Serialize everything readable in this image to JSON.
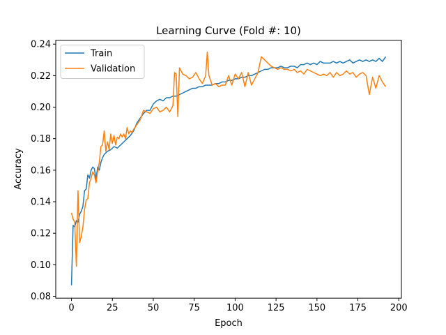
{
  "chart_data": {
    "type": "line",
    "title": "Learning Curve (Fold #: 10)",
    "xlabel": "Epoch",
    "ylabel": "Accuracy",
    "xlim": [
      -9.6,
      201.6
    ],
    "ylim": [
      0.0788,
      0.2425
    ],
    "xticks": [
      0,
      25,
      50,
      75,
      100,
      125,
      150,
      175,
      200
    ],
    "yticks": [
      0.08,
      0.1,
      0.12,
      0.14,
      0.16,
      0.18,
      0.2,
      0.22,
      0.24
    ],
    "ytick_labels": [
      "0.08",
      "0.10",
      "0.12",
      "0.14",
      "0.16",
      "0.18",
      "0.20",
      "0.22",
      "0.24"
    ],
    "legend_position": "top-left",
    "grid": false,
    "series": [
      {
        "name": "Train",
        "color": "#1f77b4",
        "x": [
          0,
          1,
          2,
          3,
          4,
          5,
          6,
          7,
          8,
          9,
          10,
          11,
          12,
          13,
          14,
          15,
          16,
          17,
          18,
          19,
          20,
          22,
          24,
          26,
          28,
          30,
          32,
          34,
          36,
          38,
          40,
          42,
          44,
          46,
          48,
          50,
          52,
          54,
          56,
          58,
          60,
          62,
          64,
          66,
          68,
          70,
          72,
          74,
          76,
          78,
          80,
          82,
          84,
          86,
          88,
          90,
          92,
          94,
          96,
          98,
          100,
          102,
          104,
          106,
          108,
          110,
          112,
          114,
          116,
          118,
          120,
          122,
          124,
          126,
          128,
          130,
          132,
          134,
          136,
          138,
          140,
          142,
          144,
          146,
          148,
          150,
          152,
          154,
          156,
          158,
          160,
          162,
          164,
          166,
          168,
          170,
          172,
          174,
          176,
          178,
          180,
          182,
          184,
          186,
          188,
          190,
          192
        ],
        "y": [
          0.087,
          0.125,
          0.124,
          0.128,
          0.127,
          0.132,
          0.134,
          0.137,
          0.147,
          0.148,
          0.157,
          0.155,
          0.16,
          0.162,
          0.161,
          0.154,
          0.162,
          0.16,
          0.165,
          0.168,
          0.17,
          0.172,
          0.173,
          0.175,
          0.174,
          0.176,
          0.178,
          0.18,
          0.182,
          0.185,
          0.19,
          0.193,
          0.196,
          0.198,
          0.198,
          0.202,
          0.204,
          0.205,
          0.204,
          0.206,
          0.206,
          0.207,
          0.207,
          0.208,
          0.209,
          0.21,
          0.211,
          0.212,
          0.212,
          0.213,
          0.213,
          0.214,
          0.214,
          0.214,
          0.215,
          0.215,
          0.216,
          0.216,
          0.217,
          0.217,
          0.218,
          0.218,
          0.219,
          0.219,
          0.22,
          0.22,
          0.221,
          0.222,
          0.223,
          0.224,
          0.224,
          0.225,
          0.225,
          0.225,
          0.226,
          0.225,
          0.225,
          0.226,
          0.226,
          0.225,
          0.227,
          0.227,
          0.228,
          0.227,
          0.228,
          0.227,
          0.229,
          0.228,
          0.228,
          0.228,
          0.229,
          0.228,
          0.229,
          0.228,
          0.229,
          0.23,
          0.228,
          0.229,
          0.23,
          0.229,
          0.23,
          0.229,
          0.23,
          0.229,
          0.231,
          0.229,
          0.232
        ]
      },
      {
        "name": "Validation",
        "color": "#ff7f0e",
        "x": [
          0,
          1,
          2,
          3,
          4,
          5,
          6,
          7,
          8,
          9,
          10,
          11,
          12,
          13,
          14,
          15,
          16,
          17,
          18,
          19,
          20,
          21,
          22,
          23,
          24,
          25,
          26,
          27,
          28,
          29,
          30,
          31,
          32,
          33,
          34,
          35,
          36,
          37,
          38,
          40,
          42,
          44,
          46,
          48,
          50,
          52,
          54,
          56,
          58,
          60,
          62,
          63,
          64,
          65,
          66,
          67,
          68,
          70,
          72,
          74,
          76,
          78,
          80,
          82,
          83,
          84,
          86,
          88,
          90,
          92,
          94,
          96,
          98,
          100,
          102,
          104,
          106,
          108,
          110,
          112,
          114,
          116,
          118,
          120,
          122,
          124,
          126,
          128,
          130,
          132,
          134,
          136,
          138,
          140,
          142,
          144,
          146,
          148,
          150,
          152,
          154,
          156,
          158,
          160,
          162,
          164,
          166,
          168,
          170,
          172,
          174,
          176,
          178,
          180,
          182,
          184,
          186,
          188,
          190,
          192
        ],
        "y": [
          0.133,
          0.129,
          0.127,
          0.099,
          0.147,
          0.114,
          0.118,
          0.124,
          0.135,
          0.141,
          0.142,
          0.152,
          0.155,
          0.159,
          0.157,
          0.152,
          0.159,
          0.165,
          0.175,
          0.176,
          0.185,
          0.172,
          0.178,
          0.173,
          0.183,
          0.177,
          0.182,
          0.176,
          0.181,
          0.18,
          0.183,
          0.181,
          0.183,
          0.18,
          0.187,
          0.183,
          0.185,
          0.184,
          0.186,
          0.189,
          0.192,
          0.198,
          0.197,
          0.196,
          0.199,
          0.2,
          0.197,
          0.198,
          0.2,
          0.197,
          0.201,
          0.222,
          0.221,
          0.194,
          0.225,
          0.223,
          0.221,
          0.22,
          0.218,
          0.219,
          0.222,
          0.218,
          0.215,
          0.22,
          0.235,
          0.22,
          0.214,
          0.215,
          0.213,
          0.214,
          0.214,
          0.22,
          0.214,
          0.221,
          0.218,
          0.222,
          0.213,
          0.222,
          0.214,
          0.218,
          0.222,
          0.232,
          0.23,
          0.228,
          0.226,
          0.225,
          0.224,
          0.225,
          0.224,
          0.224,
          0.223,
          0.224,
          0.222,
          0.223,
          0.221,
          0.224,
          0.223,
          0.222,
          0.221,
          0.22,
          0.221,
          0.22,
          0.222,
          0.219,
          0.222,
          0.22,
          0.221,
          0.223,
          0.221,
          0.222,
          0.219,
          0.221,
          0.222,
          0.22,
          0.208,
          0.219,
          0.212,
          0.22,
          0.216,
          0.213
        ]
      }
    ]
  }
}
